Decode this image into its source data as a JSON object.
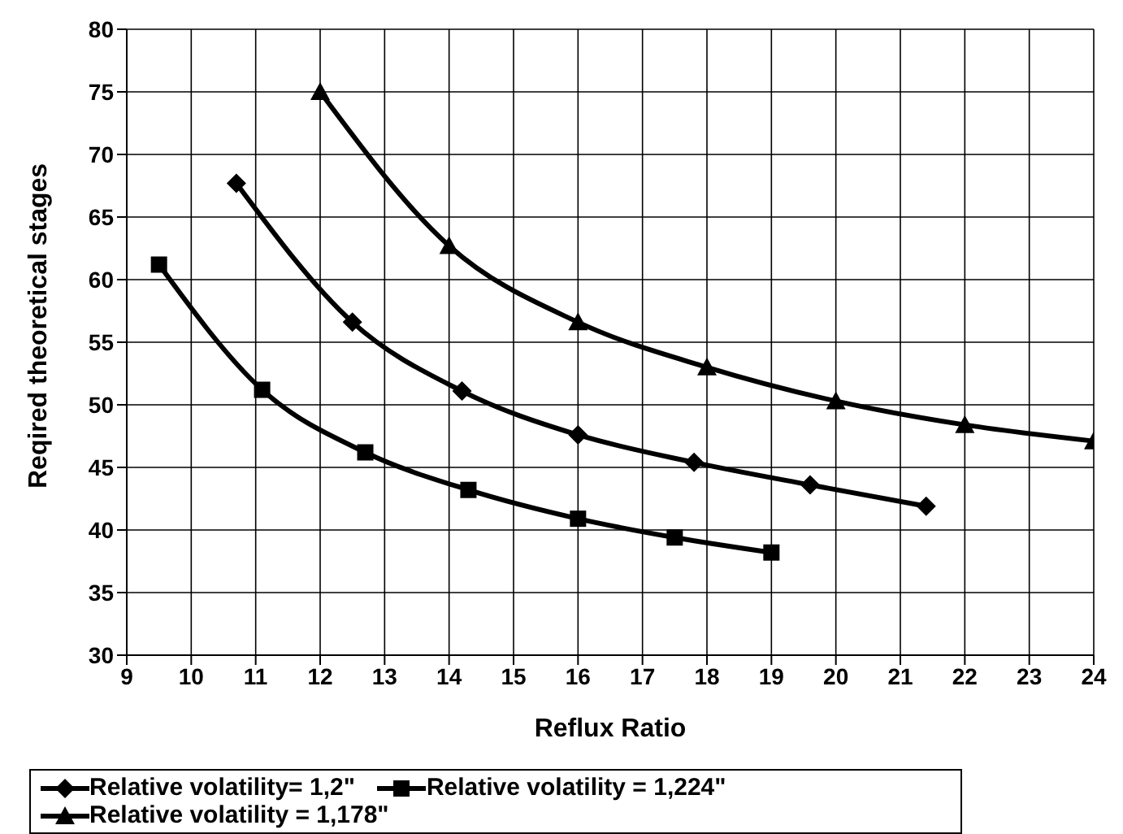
{
  "chart_data": {
    "type": "line",
    "xlabel": "Reflux Ratio",
    "ylabel": "Reqired theoretical stages",
    "xlim": [
      9,
      24
    ],
    "xticks": [
      9,
      10,
      11,
      12,
      13,
      14,
      15,
      16,
      17,
      18,
      19,
      20,
      21,
      22,
      23,
      24
    ],
    "ylim": [
      30,
      80
    ],
    "yticks": [
      30,
      35,
      40,
      45,
      50,
      55,
      60,
      65,
      70,
      75,
      80
    ],
    "grid": true,
    "legend": "bottom",
    "line_style": "solid",
    "series": [
      {
        "name": "Relative volatility= 1,2\"",
        "color": "#000000",
        "marker": "diamond",
        "x": [
          10.7,
          12.5,
          14.2,
          16,
          17.8,
          19.6,
          21.4
        ],
        "values": [
          67.7,
          56.6,
          51.1,
          47.6,
          45.4,
          43.6,
          41.9
        ]
      },
      {
        "name": "Relative volatility = 1,224\"",
        "color": "#000000",
        "marker": "square",
        "x": [
          9.5,
          11.1,
          12.7,
          14.3,
          16,
          17.5,
          19
        ],
        "values": [
          61.2,
          51.2,
          46.2,
          43.2,
          40.9,
          39.4,
          38.2
        ]
      },
      {
        "name": "Relative volatility = 1,178\"",
        "color": "#000000",
        "marker": "triangle",
        "x": [
          12,
          14,
          16,
          18,
          20,
          22,
          24
        ],
        "values": [
          75,
          62.7,
          56.6,
          53,
          50.3,
          48.4,
          47.1
        ]
      }
    ]
  }
}
